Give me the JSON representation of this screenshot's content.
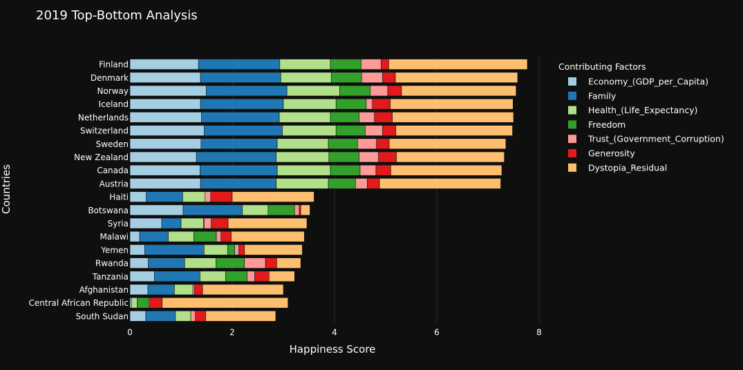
{
  "chart_data": {
    "type": "bar",
    "orientation": "horizontal",
    "stacked": true,
    "title": "2019 Top-Bottom Analysis",
    "xlabel": "Happiness Score",
    "ylabel": "Countries",
    "xlim": [
      0,
      8
    ],
    "xticks": [
      0,
      2,
      4,
      6,
      8
    ],
    "grid": true,
    "legend_title": "Contributing Factors",
    "legend_position": "right",
    "categories": [
      "Finland",
      "Denmark",
      "Norway",
      "Iceland",
      "Netherlands",
      "Switzerland",
      "Sweden",
      "New Zealand",
      "Canada",
      "Austria",
      "Haiti",
      "Botswana",
      "Syria",
      "Malawi",
      "Yemen",
      "Rwanda",
      "Tanzania",
      "Afghanistan",
      "Central African Republic",
      "South Sudan"
    ],
    "series": [
      {
        "name": "Economy_(GDP_per_Capita)",
        "color": "#a6cee3",
        "values": [
          1.34,
          1.38,
          1.49,
          1.38,
          1.4,
          1.45,
          1.39,
          1.3,
          1.37,
          1.38,
          0.32,
          1.04,
          0.62,
          0.19,
          0.29,
          0.36,
          0.48,
          0.35,
          0.03,
          0.31
        ]
      },
      {
        "name": "Family",
        "color": "#1f78b4",
        "values": [
          1.59,
          1.57,
          1.58,
          1.62,
          1.52,
          1.53,
          1.49,
          1.56,
          1.51,
          1.48,
          0.71,
          1.16,
          0.38,
          0.56,
          1.16,
          0.71,
          0.89,
          0.52,
          0.0,
          0.58
        ]
      },
      {
        "name": "Health_(Life_Expectancy)",
        "color": "#b2df8a",
        "values": [
          0.99,
          0.99,
          1.03,
          1.03,
          1.0,
          1.05,
          1.0,
          1.03,
          1.04,
          1.02,
          0.44,
          0.5,
          0.44,
          0.5,
          0.46,
          0.61,
          0.5,
          0.36,
          0.11,
          0.3
        ]
      },
      {
        "name": "Freedom",
        "color": "#33a02c",
        "values": [
          0.6,
          0.59,
          0.6,
          0.59,
          0.56,
          0.57,
          0.57,
          0.59,
          0.58,
          0.53,
          0.0,
          0.52,
          0.01,
          0.44,
          0.14,
          0.56,
          0.42,
          0.0,
          0.23,
          0.0
        ]
      },
      {
        "name": "Trust_(Government_Corruption)",
        "color": "#fb9a99",
        "values": [
          0.39,
          0.41,
          0.34,
          0.12,
          0.3,
          0.34,
          0.37,
          0.38,
          0.31,
          0.23,
          0.11,
          0.09,
          0.14,
          0.09,
          0.08,
          0.41,
          0.15,
          0.03,
          0.02,
          0.09
        ]
      },
      {
        "name": "Generosity",
        "color": "#e31a1c",
        "values": [
          0.15,
          0.25,
          0.27,
          0.35,
          0.35,
          0.26,
          0.25,
          0.35,
          0.29,
          0.24,
          0.42,
          0.03,
          0.33,
          0.2,
          0.11,
          0.22,
          0.28,
          0.16,
          0.24,
          0.2
        ]
      },
      {
        "name": "Dystopia_Residual",
        "color": "#fdbf6f",
        "values": [
          2.71,
          2.39,
          2.24,
          2.4,
          2.37,
          2.28,
          2.28,
          2.11,
          2.17,
          2.37,
          1.6,
          0.18,
          1.54,
          1.43,
          1.13,
          0.47,
          0.5,
          1.58,
          2.46,
          1.37
        ]
      }
    ]
  }
}
